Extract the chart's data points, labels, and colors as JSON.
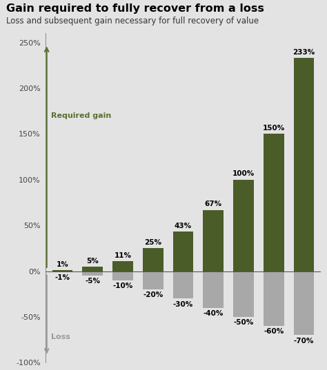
{
  "title": "Gain required to fully recover from a loss",
  "subtitle": "Loss and subsequent gain necessary for full recovery of value",
  "losses": [
    -1,
    -5,
    -10,
    -20,
    -30,
    -40,
    -50,
    -60,
    -70
  ],
  "gains": [
    1,
    5,
    11,
    25,
    43,
    67,
    100,
    150,
    233
  ],
  "loss_labels": [
    "-1%",
    "-5%",
    "-10%",
    "-20%",
    "-30%",
    "-40%",
    "-50%",
    "-60%",
    "-70%"
  ],
  "gain_labels": [
    "1%",
    "5%",
    "11%",
    "25%",
    "43%",
    "67%",
    "100%",
    "150%",
    "233%"
  ],
  "gain_color": "#4a5c28",
  "loss_color": "#a8a8a8",
  "bg_color": "#e3e3e3",
  "arrow_gain_color": "#5a7030",
  "arrow_loss_color": "#999999",
  "ylim": [
    -100,
    260
  ],
  "yticks": [
    -100,
    -50,
    0,
    50,
    100,
    150,
    200,
    250
  ],
  "ytick_labels": [
    "-100%",
    "-50%",
    "0%",
    "50%",
    "100%",
    "150%",
    "200%",
    "250%"
  ],
  "required_gain_label": "Required gain",
  "loss_label": "Loss",
  "title_fontsize": 11.5,
  "subtitle_fontsize": 8.5,
  "bar_width": 0.68
}
